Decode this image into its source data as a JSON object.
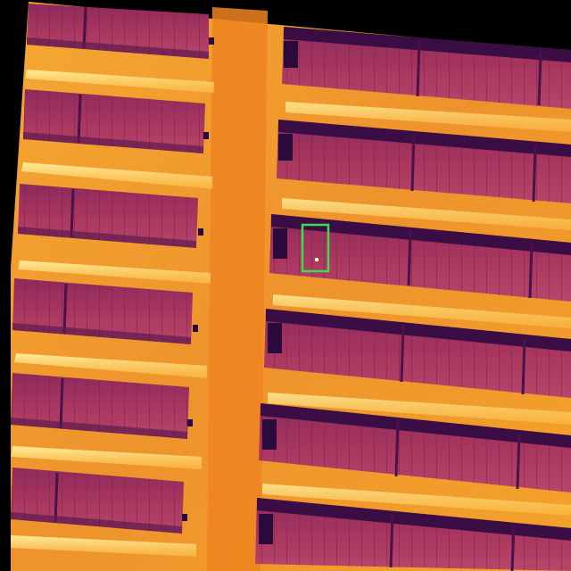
{
  "image": {
    "kind": "thermal-aerial-photo",
    "subject": "solar-panel-array",
    "palette": {
      "background": "#000000",
      "ground_hot": "#f29a1e",
      "ground_mid": "#e8731a",
      "ground_bright": "#ffd46a",
      "ground_white": "#fff3b0",
      "panel_base": "#a8365e",
      "panel_dark": "#7a2257",
      "panel_edge": "#4a1248",
      "panel_shadow": "#2a0a3a",
      "anomaly_box": "#3ddc4a"
    },
    "annotation": {
      "type": "detection-box",
      "label": ""
    }
  }
}
